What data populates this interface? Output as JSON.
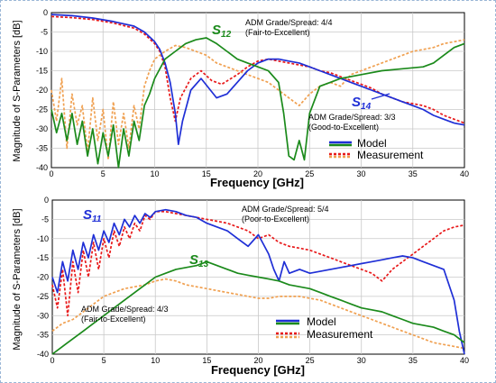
{
  "chart_data": [
    {
      "type": "line",
      "xlabel": "Frequency [GHz]",
      "ylabel": "Magnitude of S-Parameters  [dB]",
      "xlim": [
        0,
        40
      ],
      "ylim": [
        -40,
        0
      ],
      "xticks": [
        0,
        5,
        10,
        15,
        20,
        25,
        30,
        35,
        40
      ],
      "yticks": [
        0,
        -5,
        -10,
        -15,
        -20,
        -25,
        -30,
        -35,
        -40
      ],
      "xtick_labels": [
        "0",
        "5",
        "10",
        "15",
        "20",
        "25",
        "30",
        "35",
        "40"
      ],
      "ytick_labels": [
        "0",
        "-5",
        "-10",
        "-15",
        "-20",
        "-25",
        "-30",
        "-35",
        "-40"
      ],
      "grid": true,
      "legend_position": "bottom-right",
      "legend": [
        "Model",
        "Measurement"
      ],
      "annotations": {
        "s12_label": "S",
        "s12_sub": "12",
        "s14_label": "S",
        "s14_sub": "14",
        "adm_s12_line1": "ADM Grade/Spread: 4/4",
        "adm_s12_line2": "(Fair-to-Excellent)",
        "adm_s14_line1": "ADM Grade/Spread: 3/3",
        "adm_s14_line2": "(Good-to-Excellent)"
      },
      "series": [
        {
          "param": "S14",
          "source": "model",
          "color": "#1f2fd6",
          "x": [
            0,
            2,
            4,
            6,
            8,
            9,
            10,
            10.5,
            11,
            11.5,
            12,
            12.3,
            12.7,
            13.5,
            14.5,
            16,
            17,
            18,
            19,
            20,
            21,
            22,
            23,
            24,
            25,
            26,
            27,
            28,
            29,
            30,
            31,
            32,
            33,
            34,
            35,
            36,
            37,
            38,
            39,
            40
          ],
          "y": [
            -0.5,
            -0.8,
            -1.4,
            -2.3,
            -3.5,
            -5,
            -7.5,
            -9.5,
            -13,
            -18,
            -26,
            -34,
            -28,
            -20,
            -17,
            -22,
            -21,
            -18,
            -15,
            -13,
            -12,
            -12,
            -12.5,
            -13,
            -14,
            -15,
            -16,
            -17,
            -18,
            -19,
            -20,
            -21,
            -22,
            -23,
            -24,
            -25,
            -26.5,
            -27.5,
            -28.5,
            -29
          ]
        },
        {
          "param": "S14",
          "source": "measurement",
          "color": "#e8191a",
          "x": [
            0,
            2,
            4,
            6,
            8,
            9,
            10,
            10.5,
            11,
            11.5,
            12,
            12.5,
            13.5,
            14.5,
            15.5,
            16.5,
            18,
            19,
            20,
            21,
            22,
            23,
            24,
            25,
            26,
            27,
            28,
            29,
            30,
            31,
            32,
            33,
            34,
            35,
            36,
            37,
            38,
            39,
            40
          ],
          "y": [
            -1,
            -1.3,
            -1.8,
            -2.7,
            -4,
            -5.5,
            -8,
            -10,
            -14,
            -22,
            -28,
            -22,
            -17,
            -15,
            -17.5,
            -18.5,
            -16,
            -14,
            -12.5,
            -12,
            -12.5,
            -13,
            -13.5,
            -14,
            -15,
            -15.5,
            -16.5,
            -17.5,
            -18.5,
            -19.5,
            -21,
            -22,
            -23,
            -23.5,
            -24,
            -25,
            -26.5,
            -27.5,
            -28.5
          ]
        },
        {
          "param": "S12",
          "source": "model",
          "color": "#1b8a1b",
          "x": [
            0,
            0.5,
            1,
            1.5,
            2,
            2.5,
            3,
            3.5,
            4,
            4.5,
            5,
            5.5,
            6,
            6.5,
            7,
            7.5,
            8,
            8.5,
            9,
            9.5,
            10,
            11,
            12,
            13,
            14,
            15,
            16,
            17,
            18,
            19,
            20,
            21,
            22,
            22.5,
            23,
            23.5,
            24,
            24.5,
            25,
            26,
            27,
            28,
            30,
            32,
            34,
            36,
            37,
            38,
            39,
            40
          ],
          "y": [
            -25,
            -31,
            -26,
            -33,
            -26,
            -34,
            -28,
            -37,
            -30,
            -39,
            -31,
            -37,
            -29,
            -40,
            -30,
            -37,
            -28,
            -33,
            -24,
            -21,
            -17,
            -12,
            -10,
            -8,
            -7,
            -6.5,
            -8,
            -10,
            -12,
            -13,
            -14,
            -15,
            -18,
            -26,
            -37,
            -38,
            -33,
            -38,
            -26,
            -19,
            -18,
            -17,
            -16,
            -15,
            -14.5,
            -14,
            -13,
            -11,
            -9,
            -8
          ]
        },
        {
          "param": "S12",
          "source": "measurement",
          "color": "#f0a050",
          "x": [
            0,
            0.5,
            1,
            1.5,
            2,
            2.5,
            3,
            3.5,
            4,
            4.5,
            5,
            5.5,
            6,
            6.5,
            7,
            7.5,
            8,
            8.5,
            9,
            9.5,
            10,
            11,
            12,
            13,
            14,
            15,
            16,
            17,
            18,
            19,
            20,
            21,
            22,
            23,
            24,
            25,
            26,
            27,
            28,
            29,
            30,
            31,
            32,
            33,
            34,
            35,
            36,
            37,
            38,
            39,
            40
          ],
          "y": [
            -20,
            -28,
            -17,
            -35,
            -21,
            -29,
            -24,
            -36,
            -22,
            -33,
            -25,
            -38,
            -23,
            -34,
            -26,
            -35,
            -24,
            -30,
            -19,
            -15,
            -12,
            -10,
            -8.5,
            -9,
            -10,
            -11,
            -13,
            -14,
            -15,
            -16,
            -17,
            -18,
            -20,
            -22,
            -24,
            -21,
            -19,
            -18,
            -19,
            -16,
            -15,
            -14,
            -13,
            -12,
            -11,
            -10,
            -9.5,
            -9,
            -8,
            -7.5,
            -7
          ]
        }
      ]
    },
    {
      "type": "line",
      "xlabel": "Frequency [GHz]",
      "ylabel": "Magnitude of S-Parameters  [dB]",
      "xlim": [
        0,
        40
      ],
      "ylim": [
        -40,
        0
      ],
      "xticks": [
        0,
        5,
        10,
        15,
        20,
        25,
        30,
        35,
        40
      ],
      "yticks": [
        0,
        -5,
        -10,
        -15,
        -20,
        -25,
        -30,
        -35,
        -40
      ],
      "xtick_labels": [
        "0",
        "5",
        "10",
        "15",
        "20",
        "25",
        "30",
        "35",
        "40"
      ],
      "ytick_labels": [
        "0",
        "-5",
        "-10",
        "-15",
        "-20",
        "-25",
        "-30",
        "-35",
        "-40"
      ],
      "grid": true,
      "legend_position": "bottom-right",
      "legend": [
        "Model",
        "Measurement"
      ],
      "annotations": {
        "s11_label": "S",
        "s11_sub": "11",
        "s13_label": "S",
        "s13_sub": "13",
        "adm_s11_line1": "ADM Grade/Spread: 5/4",
        "adm_s11_line2": "(Poor-to-Excellent)",
        "adm_s13_line1": "ADM Grade/Spread: 4/3",
        "adm_s13_line2": "(Fair-to-Excellent)"
      },
      "series": [
        {
          "param": "S11",
          "source": "model",
          "color": "#1f2fd6",
          "x": [
            0,
            0.5,
            1,
            1.5,
            2,
            2.5,
            3,
            3.5,
            4,
            4.5,
            5,
            5.5,
            6,
            6.5,
            7,
            7.5,
            8,
            8.5,
            9,
            9.5,
            10,
            11,
            12,
            13,
            14,
            15,
            16,
            17,
            18,
            19,
            20,
            21,
            21.5,
            22,
            22.5,
            23,
            24,
            25,
            26,
            27,
            28,
            29,
            30,
            31,
            32,
            33,
            34,
            35,
            36,
            37,
            38,
            39,
            39.5,
            40
          ],
          "y": [
            -20,
            -24,
            -16,
            -21,
            -13,
            -18,
            -11,
            -15,
            -9,
            -13,
            -8,
            -11,
            -6,
            -9,
            -5,
            -7,
            -4,
            -6,
            -3.5,
            -4.5,
            -3,
            -2.5,
            -3,
            -4,
            -4.5,
            -6,
            -7,
            -8,
            -10,
            -12,
            -9,
            -14,
            -18,
            -21,
            -16,
            -19,
            -18,
            -19,
            -18.5,
            -18,
            -17.5,
            -17,
            -16.5,
            -16,
            -15.5,
            -15,
            -14.5,
            -15,
            -16,
            -17,
            -18,
            -26,
            -34,
            -40
          ]
        },
        {
          "param": "S11",
          "source": "measurement",
          "color": "#e8191a",
          "x": [
            0,
            0.5,
            1,
            1.5,
            2,
            2.5,
            3,
            3.5,
            4,
            4.5,
            5,
            5.5,
            6,
            6.5,
            7,
            7.5,
            8,
            8.5,
            9,
            9.5,
            10,
            11,
            12,
            13,
            14,
            15,
            16,
            17,
            18,
            19,
            20,
            21,
            22,
            23,
            24,
            25,
            26,
            27,
            28,
            29,
            30,
            31,
            32,
            33,
            34,
            35,
            36,
            37,
            38,
            39,
            40
          ],
          "y": [
            -22,
            -28,
            -18,
            -30,
            -16,
            -24,
            -13,
            -20,
            -11,
            -18,
            -10,
            -15,
            -8,
            -12,
            -7,
            -10,
            -6,
            -8,
            -4,
            -5,
            -3,
            -3,
            -3.5,
            -4,
            -4.5,
            -5,
            -5.5,
            -6,
            -7,
            -8,
            -10,
            -9,
            -11,
            -12,
            -12.5,
            -13,
            -14,
            -15,
            -16,
            -17,
            -18,
            -19,
            -21,
            -18,
            -16,
            -14,
            -12,
            -10,
            -8,
            -7,
            -6.5
          ]
        },
        {
          "param": "S13",
          "source": "model",
          "color": "#1b8a1b",
          "x": [
            0,
            1,
            2,
            3,
            4,
            5,
            6,
            7,
            8,
            9,
            10,
            11,
            12,
            13,
            14,
            15,
            16,
            17,
            18,
            19,
            20,
            21,
            22,
            23,
            24,
            25,
            26,
            27,
            28,
            29,
            30,
            31,
            32,
            33,
            34,
            35,
            36,
            37,
            38,
            39,
            40
          ],
          "y": [
            -40,
            -38,
            -36,
            -34,
            -32,
            -30,
            -28,
            -26,
            -24,
            -22,
            -20,
            -19,
            -18,
            -17.5,
            -17,
            -16,
            -17,
            -18,
            -19,
            -19.5,
            -20,
            -20.5,
            -21,
            -22,
            -22.5,
            -23,
            -24,
            -25,
            -26,
            -27,
            -28,
            -28.5,
            -29,
            -30,
            -31,
            -32,
            -32.5,
            -33,
            -34,
            -35,
            -37
          ]
        },
        {
          "param": "S13",
          "source": "measurement",
          "color": "#f0a050",
          "x": [
            0,
            1,
            2,
            3,
            4,
            5,
            6,
            7,
            8,
            9,
            10,
            11,
            12,
            13,
            14,
            15,
            16,
            17,
            18,
            19,
            20,
            21,
            22,
            23,
            24,
            25,
            26,
            27,
            28,
            29,
            30,
            31,
            32,
            33,
            34,
            35,
            36,
            37,
            38,
            39,
            40
          ],
          "y": [
            -34,
            -32,
            -31,
            -29,
            -27,
            -25,
            -24,
            -23,
            -22.5,
            -22,
            -21,
            -20.5,
            -21,
            -22,
            -22.5,
            -23,
            -23.5,
            -24,
            -24.5,
            -25,
            -25.5,
            -25.5,
            -25,
            -25,
            -25,
            -25.5,
            -26,
            -27,
            -28,
            -29,
            -30,
            -31,
            -32,
            -33,
            -34,
            -35,
            -36,
            -37,
            -37.5,
            -38,
            -38.5
          ]
        }
      ]
    }
  ]
}
